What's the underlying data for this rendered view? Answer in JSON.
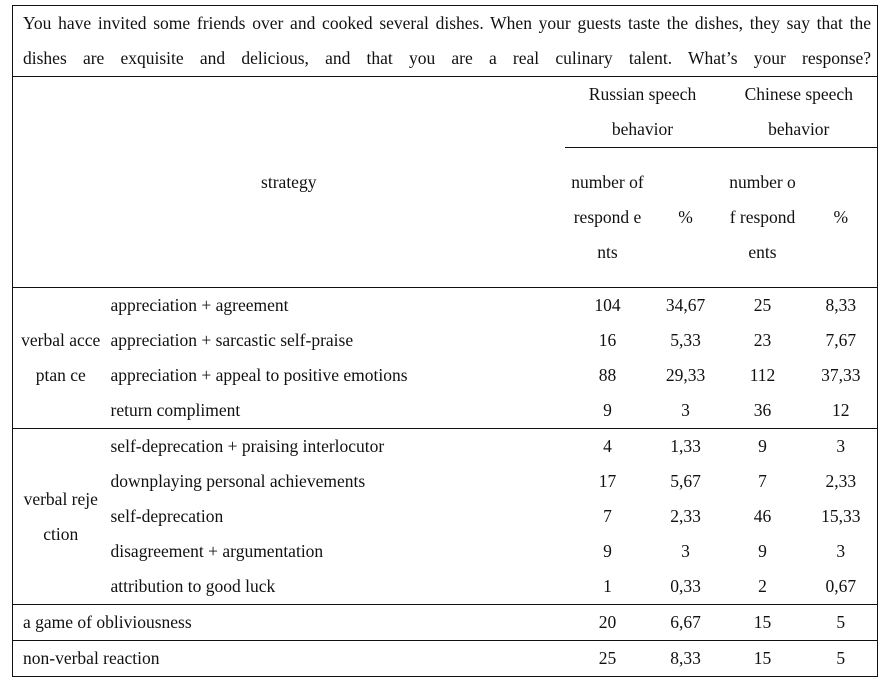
{
  "scenario": "You have invited some friends over and cooked several dishes. When your guests taste the dishes, they say that the dishes are exquisite and delicious, and that you are a real culinary talent. What’s your response?",
  "header": {
    "strategy": "strategy",
    "russian": "Russian speech behavior",
    "chinese": "Chinese speech behavior",
    "number_ru": "number of respond ents",
    "percent_ru": "%",
    "number_cn": "number of respond ents",
    "percent_cn": "%"
  },
  "groups": [
    {
      "label": "verbal acceptan ce",
      "rows": [
        {
          "strategy": "appreciation + agreement",
          "ru_n": "104",
          "ru_pct": "34,67",
          "cn_n": "25",
          "cn_pct": "8,33"
        },
        {
          "strategy": "appreciation + sarcastic self-praise",
          "ru_n": "16",
          "ru_pct": "5,33",
          "cn_n": "23",
          "cn_pct": "7,67"
        },
        {
          "strategy": "appreciation + appeal to positive emotions",
          "ru_n": "88",
          "ru_pct": "29,33",
          "cn_n": "112",
          "cn_pct": "37,33"
        },
        {
          "strategy": "return compliment",
          "ru_n": "9",
          "ru_pct": "3",
          "cn_n": "36",
          "cn_pct": "12"
        }
      ]
    },
    {
      "label": "verbal rejection",
      "rows": [
        {
          "strategy": "self-deprecation + praising interlocutor",
          "ru_n": "4",
          "ru_pct": "1,33",
          "cn_n": "9",
          "cn_pct": "3"
        },
        {
          "strategy": "downplaying personal achievements",
          "ru_n": "17",
          "ru_pct": "5,67",
          "cn_n": "7",
          "cn_pct": "2,33"
        },
        {
          "strategy": "self-deprecation",
          "ru_n": "7",
          "ru_pct": "2,33",
          "cn_n": "46",
          "cn_pct": "15,33"
        },
        {
          "strategy": "disagreement + argumentation",
          "ru_n": "9",
          "ru_pct": "3",
          "cn_n": "9",
          "cn_pct": "3"
        },
        {
          "strategy": "attribution to good luck",
          "ru_n": "1",
          "ru_pct": "0,33",
          "cn_n": "2",
          "cn_pct": "0,67"
        }
      ]
    }
  ],
  "other_rows": [
    {
      "strategy": "a game of obliviousness",
      "ru_n": "20",
      "ru_pct": "6,67",
      "cn_n": "15",
      "cn_pct": "5"
    },
    {
      "strategy": "non-verbal reaction",
      "ru_n": "25",
      "ru_pct": "8,33",
      "cn_n": "15",
      "cn_pct": "5"
    }
  ]
}
